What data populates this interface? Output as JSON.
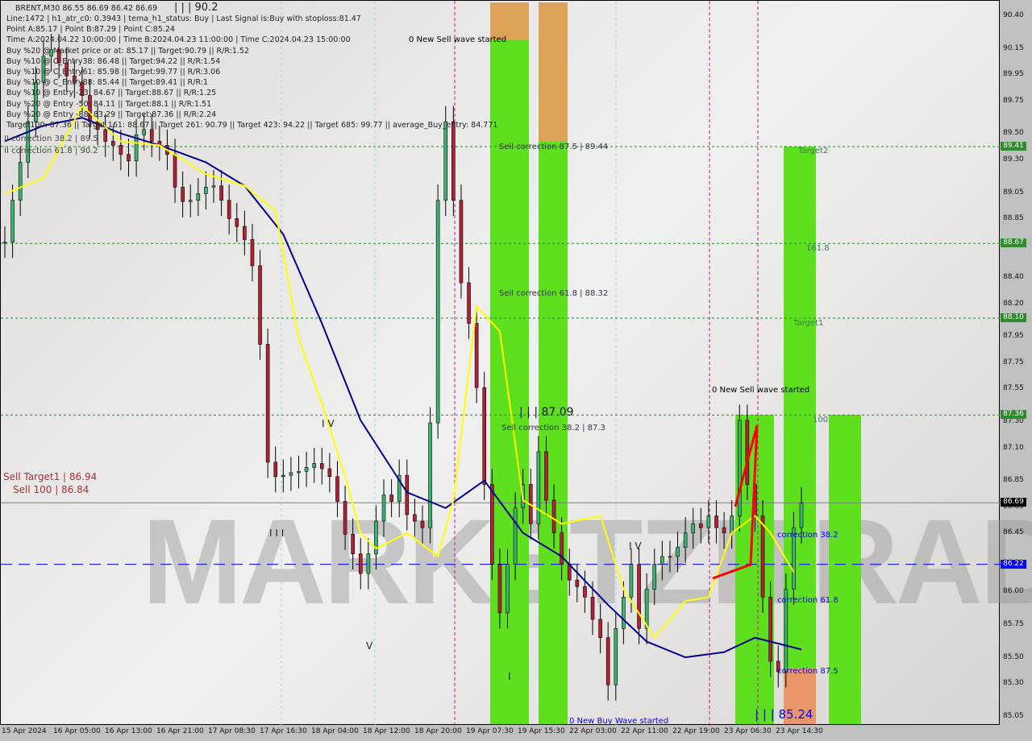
{
  "header": {
    "symbol_line": "BRENT,M30  86.55 86.69 86.42 86.69",
    "info_lines": [
      "Line:1472 | h1_atr_c0: 0.3943 | tema_h1_status: Buy | Last Signal is:Buy with stoploss:81.47",
      "Point A:85.17 | Point B:87.29 | Point C:85.24",
      "Time A:2024.04.22 10:00:00 | Time B:2024.04.23 11:00:00 | Time C:2024.04.23 15:00:00",
      "Buy %20 @ Market price or at: 85.17 || Target:90.79 || R/R:1.52",
      "Buy %10 @ C_Entry38: 86.48 || Target:94.22 || R/R:1.54",
      "Buy %10 @ C_Entry61: 85.98 || Target:99.77 || R/R:3.06",
      "Buy %10 @ C_Entry88: 85.44 || Target:89.41 || R/R:1",
      "Buy %10 @ Entry -23: 84.67 || Target:88.67 || R/R:1.25",
      "Buy %20 @ Entry -50: 84.11 || Target:88.1 || R/R:1.51",
      "Buy %20 @ Entry -88: 83.29 || Target:87.36 || R/R:2.24",
      "Target100: 87.36 || Target 161: 88.67 || Target 261: 90.79 || Target 423: 94.22 || Target 685: 99.77 || average_Buy_entry: 84.771"
    ]
  },
  "annotations": {
    "top_wave": "| | | 90.2",
    "corr_left_1": "II correction 61.8 | 90.2",
    "corr_left_2": "II correction 38.2 | 89.5",
    "new_sell_1": "0 New Sell wave started",
    "new_sell_2": "0 New Sell wave started",
    "new_buy": "0 New Buy Wave started",
    "sell_corr_875": "Sell correction 87.5 | 89.44",
    "sell_corr_618": "Sell correction 61.8 | 88.32",
    "sell_corr_382": "Sell correction 38.2 | 87.3",
    "wave_87": "| | | 87.09",
    "wave_8524": "| | | 85.24",
    "target2": "Target2",
    "t1618": "161.8",
    "target1": "Target1",
    "t100": "100",
    "sell_target1": "Sell Target1 | 86.94",
    "sell_100": "Sell 100 | 86.84",
    "corr_382": "correction 38.2",
    "corr_618": "correction 61.8",
    "corr_875": "correction 87.5",
    "iv": "I V",
    "iii": "I I I",
    "v": "V",
    "i": "I",
    "iv2": "I V",
    "watermark": "MARKETZITRADE"
  },
  "chart_data": {
    "type": "candlestick",
    "symbol": "BRENT",
    "timeframe": "M30",
    "ylim": [
      85.0,
      90.5
    ],
    "yticks": [
      "90.40",
      "90.15",
      "89.95",
      "89.75",
      "89.50",
      "89.30",
      "89.05",
      "88.85",
      "88.65",
      "88.40",
      "88.20",
      "87.95",
      "87.75",
      "87.55",
      "87.30",
      "87.10",
      "86.85",
      "86.65",
      "86.45",
      "86.22",
      "86.00",
      "85.75",
      "85.50",
      "85.30",
      "85.05"
    ],
    "xticks": [
      "15 Apr 2024",
      "16 Apr 05:00",
      "16 Apr 13:00",
      "16 Apr 21:00",
      "17 Apr 08:30",
      "17 Apr 16:30",
      "18 Apr 04:00",
      "18 Apr 12:00",
      "18 Apr 20:00",
      "19 Apr 07:30",
      "19 Apr 15:30",
      "22 Apr 03:00",
      "22 Apr 11:00",
      "22 Apr 19:00",
      "23 Apr 06:30",
      "23 Apr 14:30"
    ],
    "closes": [
      88.68,
      89.0,
      89.29,
      89.6,
      89.9,
      90.1,
      90.15,
      90.05,
      89.95,
      89.9,
      89.8,
      89.6,
      89.54,
      89.45,
      89.42,
      89.35,
      89.3,
      89.5,
      89.54,
      89.45,
      89.42,
      89.35,
      89.1,
      88.99,
      89.0,
      89.05,
      89.1,
      89.11,
      89.0,
      88.86,
      88.8,
      88.7,
      88.5,
      87.9,
      87.0,
      86.89,
      86.9,
      86.92,
      86.93,
      86.96,
      86.99,
      86.95,
      86.89,
      86.7,
      86.45,
      86.3,
      86.15,
      86.3,
      86.55,
      86.75,
      86.7,
      86.9,
      86.6,
      86.55,
      86.5,
      87.3,
      89.0,
      89.6,
      89.0,
      88.37,
      88.06,
      87.57,
      86.83,
      86.22,
      85.85,
      86.22,
      86.65,
      86.83,
      86.53,
      87.08,
      86.71,
      86.46,
      86.22,
      86.1,
      86.05,
      85.97,
      85.8,
      85.66,
      85.3,
      85.73,
      85.97,
      86.22,
      85.73,
      86.03,
      86.22,
      86.28,
      86.28,
      86.35,
      86.46,
      86.53,
      86.5,
      86.59,
      86.5,
      86.46,
      86.59,
      87.32,
      86.83,
      86.59,
      85.97,
      85.48,
      85.4,
      86.03,
      86.5,
      86.69
    ],
    "ma_slow": [
      [
        0,
        89.45
      ],
      [
        5,
        89.57
      ],
      [
        10,
        89.63
      ],
      [
        15,
        89.51
      ],
      [
        20,
        89.42
      ],
      [
        26,
        89.29
      ],
      [
        31,
        89.11
      ],
      [
        36,
        88.74
      ],
      [
        41,
        88.06
      ],
      [
        46,
        87.32
      ],
      [
        52,
        86.77
      ],
      [
        57,
        86.65
      ],
      [
        62,
        86.86
      ],
      [
        67,
        86.46
      ],
      [
        72,
        86.28
      ],
      [
        78,
        85.91
      ],
      [
        83,
        85.63
      ],
      [
        88,
        85.51
      ],
      [
        93,
        85.55
      ],
      [
        97,
        85.66
      ],
      [
        103,
        85.57
      ]
    ],
    "ma_fast": [
      [
        0,
        89.05
      ],
      [
        5,
        89.17
      ],
      [
        10,
        89.72
      ],
      [
        15,
        89.45
      ],
      [
        20,
        89.42
      ],
      [
        26,
        89.2
      ],
      [
        31,
        89.11
      ],
      [
        35,
        88.92
      ],
      [
        38,
        87.94
      ],
      [
        41,
        87.45
      ],
      [
        44,
        86.89
      ],
      [
        46,
        86.46
      ],
      [
        48,
        86.34
      ],
      [
        52,
        86.46
      ],
      [
        56,
        86.28
      ],
      [
        58,
        86.71
      ],
      [
        61,
        88.19
      ],
      [
        64,
        88.0
      ],
      [
        67,
        86.71
      ],
      [
        72,
        86.53
      ],
      [
        77,
        86.59
      ],
      [
        80,
        86.03
      ],
      [
        84,
        85.66
      ],
      [
        88,
        85.94
      ],
      [
        91,
        85.97
      ],
      [
        94,
        86.46
      ],
      [
        97,
        86.59
      ],
      [
        99,
        86.46
      ],
      [
        102,
        86.16
      ]
    ],
    "levels": [
      {
        "price": 89.41,
        "label": "89.41",
        "color": "#228b22",
        "style": "dashed"
      },
      {
        "price": 88.67,
        "label": "88.67",
        "color": "#228b22",
        "style": "dashed"
      },
      {
        "price": 88.1,
        "label": "88.10",
        "color": "#228b22",
        "style": "dashed"
      },
      {
        "price": 87.36,
        "label": "87.36",
        "color": "#228b22",
        "style": "dashed"
      },
      {
        "price": 86.69,
        "label": "86.69",
        "color": "#000000",
        "style": "solid"
      },
      {
        "price": 86.22,
        "label": "86.22",
        "color": "#0000ff",
        "style": "dashed"
      }
    ],
    "colors": {
      "bull": "#3cb371",
      "bear": "#b22234",
      "ma_slow": "#00008b",
      "ma_fast": "#ffff00",
      "zone": "#5ee01e",
      "zone_alt": "#e8956a"
    }
  }
}
